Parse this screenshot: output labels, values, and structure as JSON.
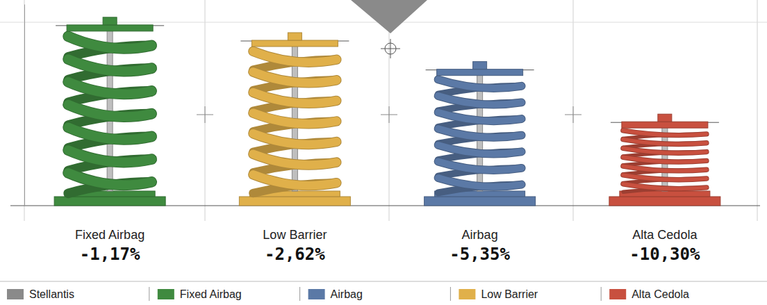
{
  "chart_data": {
    "type": "spring",
    "categories": [
      "Fixed Airbag",
      "Low Barrier",
      "Airbag",
      "Alta Cedola"
    ],
    "values": [
      -1.17,
      -2.62,
      -5.35,
      -10.3
    ],
    "value_labels": [
      "-1,17%",
      "-2,62%",
      "-5,35%",
      "-10,30%"
    ],
    "colors": [
      "#3f8a3f",
      "#e0b04a",
      "#5b79a6",
      "#c8503f"
    ],
    "ylim": [
      -19,
      0
    ],
    "tick_labels": false,
    "data_labels": true,
    "legend": "bottom",
    "legend_items": [
      {
        "name": "Stellantis",
        "color": "#8a8a8a"
      },
      {
        "name": "Fixed Airbag",
        "color": "#3f8a3f"
      },
      {
        "name": "Airbag",
        "color": "#5b79a6"
      },
      {
        "name": "Low Barrier",
        "color": "#e0b04a"
      },
      {
        "name": "Alta Cedola",
        "color": "#c8503f"
      }
    ]
  }
}
